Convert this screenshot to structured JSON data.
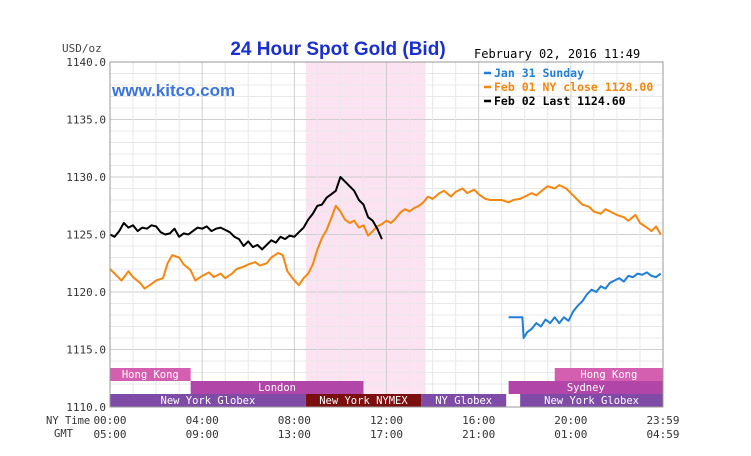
{
  "chart_data": {
    "type": "line",
    "title": "24 Hour Spot Gold (Bid)",
    "date_label": "February 02, 2016 11:49",
    "watermark": "www.kitco.com",
    "ylabel": "USD/oz",
    "ylim": [
      1110,
      1140
    ],
    "xlim": [
      0,
      24
    ],
    "grid": true,
    "legend_placement": "top-right",
    "y_ticks": [
      "1110.0",
      "1115.0",
      "1120.0",
      "1125.0",
      "1130.0",
      "1135.0",
      "1140.0"
    ],
    "x_ticks_ny": [
      "00:00",
      "04:00",
      "08:00",
      "12:00",
      "16:00",
      "20:00",
      "23:59"
    ],
    "x_ticks_gmt": [
      "05:00",
      "09:00",
      "13:00",
      "17:00",
      "21:00",
      "01:00",
      "04:59"
    ],
    "row_label_ny": "NY Time",
    "row_label_gmt": "GMT",
    "shade_range": [
      8.5,
      13.7
    ],
    "sessions": [
      {
        "name": "Hong Kong",
        "row": 0,
        "start": 0,
        "end": 3.5,
        "color": "#d45fb0",
        "text_color": "#ffffff",
        "show_label": true
      },
      {
        "name": "Hong Kong",
        "row": 0,
        "start": 19.3,
        "end": 24,
        "color": "#d45fb0",
        "text_color": "#ffffff",
        "show_label": true
      },
      {
        "name": "London",
        "row": 1,
        "start": 3.5,
        "end": 11.0,
        "color": "#b146a8",
        "text_color": "#ffffff",
        "show_label": true
      },
      {
        "name": "Sydney",
        "row": 1,
        "start": 17.3,
        "end": 24,
        "color": "#b146a8",
        "text_color": "#ffffff",
        "show_label": true
      },
      {
        "name": "New York Globex",
        "row": 2,
        "start": 0,
        "end": 8.5,
        "color": "#7e4ca6",
        "text_color": "#ffffff",
        "show_label": true
      },
      {
        "name": "New York NYMEX",
        "row": 2,
        "start": 8.5,
        "end": 13.5,
        "color": "#7b0e0e",
        "text_color": "#ffffff",
        "show_label": true
      },
      {
        "name": "NY Globex",
        "row": 2,
        "start": 13.5,
        "end": 17.2,
        "color": "#7e4ca6",
        "text_color": "#ffffff",
        "show_label": true
      },
      {
        "name": "",
        "row": 2,
        "start": 17.2,
        "end": 17.8,
        "color": "#ffffff",
        "text_color": "#ffffff",
        "show_label": false
      },
      {
        "name": "New York Globex",
        "row": 2,
        "start": 17.8,
        "end": 24,
        "color": "#7e4ca6",
        "text_color": "#ffffff",
        "show_label": true
      }
    ],
    "series": [
      {
        "name": "Jan 31 Sunday",
        "color": "#1f7fd6",
        "x": [
          17.3,
          17.5,
          17.7,
          17.9,
          17.95,
          18.1,
          18.3,
          18.5,
          18.7,
          18.9,
          19.1,
          19.3,
          19.5,
          19.7,
          19.9,
          20.1,
          20.3,
          20.5,
          20.7,
          20.9,
          21.1,
          21.3,
          21.5,
          21.7,
          21.9,
          22.1,
          22.3,
          22.5,
          22.7,
          22.9,
          23.1,
          23.3,
          23.5,
          23.7,
          23.9
        ],
        "y": [
          1117.8,
          1117.8,
          1117.8,
          1117.8,
          1116.0,
          1116.5,
          1116.8,
          1117.3,
          1117.0,
          1117.6,
          1117.3,
          1117.8,
          1117.3,
          1117.8,
          1117.5,
          1118.3,
          1118.8,
          1119.2,
          1119.8,
          1120.2,
          1120.0,
          1120.5,
          1120.3,
          1120.8,
          1121.0,
          1121.2,
          1120.9,
          1121.4,
          1121.3,
          1121.6,
          1121.5,
          1121.7,
          1121.4,
          1121.3,
          1121.6
        ]
      },
      {
        "name": "Feb 01 NY close 1128.00",
        "color": "#f5870f",
        "x": [
          0.0,
          0.3,
          0.5,
          0.8,
          1.0,
          1.3,
          1.5,
          1.8,
          2.0,
          2.3,
          2.5,
          2.7,
          3.0,
          3.2,
          3.5,
          3.7,
          4.0,
          4.3,
          4.5,
          4.8,
          5.0,
          5.3,
          5.5,
          5.8,
          6.0,
          6.3,
          6.5,
          6.8,
          7.0,
          7.3,
          7.5,
          7.7,
          8.0,
          8.2,
          8.4,
          8.6,
          8.8,
          9.0,
          9.2,
          9.4,
          9.6,
          9.8,
          10.0,
          10.2,
          10.4,
          10.6,
          10.8,
          11.0,
          11.2,
          11.4,
          11.6,
          11.8,
          12.0,
          12.2,
          12.4,
          12.6,
          12.8,
          13.0,
          13.2,
          13.4,
          13.6,
          13.8,
          14.0,
          14.3,
          14.5,
          14.8,
          15.0,
          15.3,
          15.5,
          15.8,
          16.0,
          16.3,
          16.5,
          16.8,
          17.0,
          17.3,
          17.5,
          17.8,
          18.0,
          18.3,
          18.5,
          18.8,
          19.0,
          19.3,
          19.5,
          19.8,
          20.0,
          20.3,
          20.5,
          20.8,
          21.0,
          21.3,
          21.5,
          21.8,
          22.0,
          22.3,
          22.5,
          22.8,
          23.0,
          23.3,
          23.5,
          23.7,
          23.9
        ],
        "y": [
          1122.0,
          1121.4,
          1121.0,
          1121.8,
          1121.3,
          1120.8,
          1120.3,
          1120.7,
          1121.0,
          1121.2,
          1122.5,
          1123.2,
          1123.0,
          1122.4,
          1121.9,
          1121.0,
          1121.4,
          1121.7,
          1121.3,
          1121.6,
          1121.2,
          1121.6,
          1122.0,
          1122.2,
          1122.4,
          1122.6,
          1122.3,
          1122.5,
          1123.0,
          1123.4,
          1123.2,
          1121.8,
          1121.0,
          1120.6,
          1121.2,
          1121.6,
          1122.4,
          1123.7,
          1124.7,
          1125.4,
          1126.4,
          1127.5,
          1127.0,
          1126.3,
          1126.0,
          1126.2,
          1125.6,
          1125.8,
          1124.9,
          1125.3,
          1125.7,
          1125.9,
          1126.2,
          1126.0,
          1126.4,
          1126.9,
          1127.2,
          1127.0,
          1127.3,
          1127.5,
          1127.8,
          1128.3,
          1128.1,
          1128.6,
          1128.8,
          1128.3,
          1128.7,
          1129.0,
          1128.6,
          1128.9,
          1128.5,
          1128.1,
          1128.0,
          1128.0,
          1128.0,
          1127.8,
          1128.0,
          1128.1,
          1128.3,
          1128.6,
          1128.4,
          1128.9,
          1129.2,
          1129.0,
          1129.3,
          1129.0,
          1128.6,
          1128.0,
          1127.6,
          1127.4,
          1127.0,
          1126.8,
          1127.2,
          1126.9,
          1126.7,
          1126.5,
          1126.2,
          1126.7,
          1126.0,
          1125.6,
          1125.3,
          1125.7,
          1125.0
        ]
      },
      {
        "name": "Feb 02 Last 1124.60",
        "color": "#000000",
        "x": [
          0.0,
          0.2,
          0.4,
          0.6,
          0.8,
          1.0,
          1.2,
          1.4,
          1.6,
          1.8,
          2.0,
          2.2,
          2.4,
          2.6,
          2.8,
          3.0,
          3.2,
          3.4,
          3.6,
          3.8,
          4.0,
          4.2,
          4.4,
          4.6,
          4.8,
          5.0,
          5.2,
          5.4,
          5.6,
          5.8,
          6.0,
          6.2,
          6.4,
          6.6,
          6.8,
          7.0,
          7.2,
          7.4,
          7.6,
          7.8,
          8.0,
          8.2,
          8.4,
          8.6,
          8.8,
          9.0,
          9.2,
          9.4,
          9.6,
          9.8,
          10.0,
          10.2,
          10.4,
          10.6,
          10.8,
          11.0,
          11.2,
          11.4,
          11.6,
          11.8
        ],
        "y": [
          1125.0,
          1124.8,
          1125.3,
          1126.0,
          1125.6,
          1125.8,
          1125.3,
          1125.6,
          1125.5,
          1125.8,
          1125.7,
          1125.2,
          1125.0,
          1125.1,
          1125.5,
          1124.8,
          1125.1,
          1125.0,
          1125.3,
          1125.6,
          1125.5,
          1125.7,
          1125.3,
          1125.5,
          1125.6,
          1125.4,
          1125.2,
          1124.8,
          1124.6,
          1124.0,
          1124.4,
          1123.9,
          1124.1,
          1123.7,
          1124.1,
          1124.5,
          1124.3,
          1124.8,
          1124.6,
          1124.9,
          1124.8,
          1125.2,
          1125.6,
          1126.3,
          1126.8,
          1127.5,
          1127.6,
          1128.2,
          1128.5,
          1128.8,
          1130.0,
          1129.6,
          1129.2,
          1128.8,
          1128.0,
          1127.6,
          1126.5,
          1126.2,
          1125.5,
          1124.6
        ]
      }
    ]
  }
}
